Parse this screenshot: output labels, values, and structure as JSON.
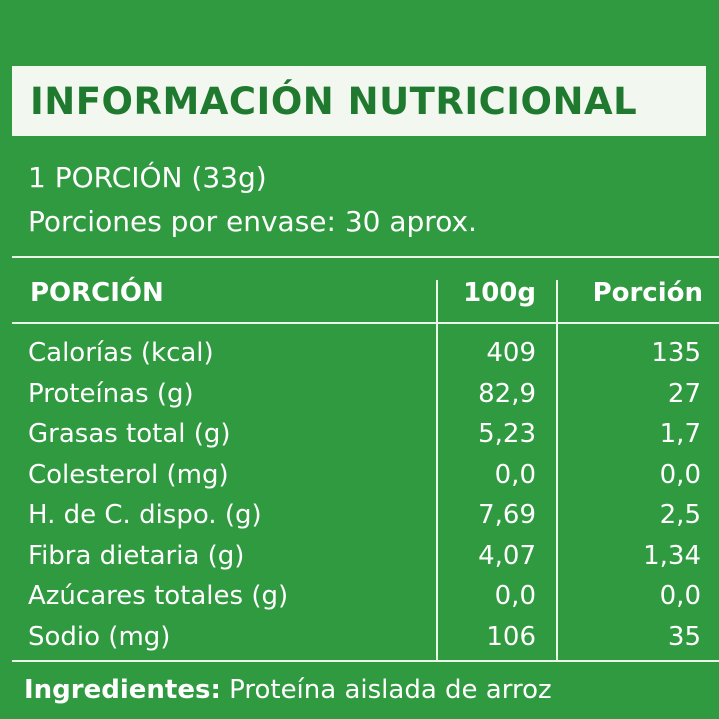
{
  "title": "INFORMACIÓN NUTRICIONAL",
  "serving": {
    "size": "1 PORCIÓN (33g)",
    "per_container": "Porciones por envase: 30 aprox."
  },
  "table": {
    "headers": [
      "PORCIÓN",
      "100g",
      "Porción"
    ],
    "rows": [
      {
        "name": "Calorías (kcal)",
        "per100": "409",
        "portion": "135"
      },
      {
        "name": "Proteínas (g)",
        "per100": "82,9",
        "portion": "27"
      },
      {
        "name": "Grasas total (g)",
        "per100": "5,23",
        "portion": "1,7"
      },
      {
        "name": "Colesterol (mg)",
        "per100": "0,0",
        "portion": "0,0"
      },
      {
        "name": "H. de C. dispo. (g)",
        "per100": "7,69",
        "portion": "2,5"
      },
      {
        "name": "Fibra dietaria (g)",
        "per100": "4,07",
        "portion": "1,34"
      },
      {
        "name": "Azúcares totales (g)",
        "per100": "0,0",
        "portion": "0,0"
      },
      {
        "name": "Sodio (mg)",
        "per100": "106",
        "portion": "35"
      }
    ]
  },
  "ingredients": {
    "label": "Ingredientes:",
    "text": " Proteína aislada de arroz"
  },
  "colors": {
    "background": "#2f9a3f",
    "title_box": "#f2f7f0",
    "title_text": "#1f7a2f",
    "text": "#ffffff"
  }
}
